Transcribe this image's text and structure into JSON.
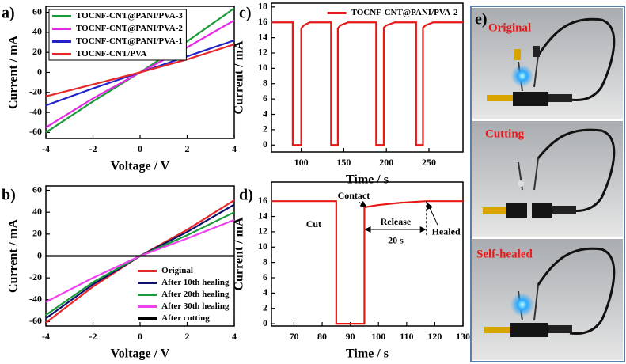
{
  "chart_data": [
    {
      "type": "line",
      "panel_label": "a)",
      "xlabel": "Voltage / V",
      "ylabel": "Current / mA",
      "x": [
        -4,
        -2,
        0,
        2,
        4
      ],
      "xlim": [
        -4,
        4
      ],
      "xticks": [
        -4,
        -2,
        0,
        2,
        4
      ],
      "ylim": [
        -66,
        66
      ],
      "yticks": [
        -60,
        -40,
        -20,
        0,
        20,
        40,
        60
      ],
      "legend": "upper left",
      "legend_frame": true,
      "series": [
        {
          "name": "TOCNF-CNT@PANI/PVA-3",
          "color": "#1a9a3a",
          "values": [
            -60,
            -29,
            0,
            31,
            64
          ]
        },
        {
          "name": "TOCNF-CNT@PANI/PVA-2",
          "color": "#e628e6",
          "values": [
            -55,
            -26,
            0,
            25,
            52
          ]
        },
        {
          "name": "TOCNF-CNT@PANI/PVA-1",
          "color": "#2222c8",
          "values": [
            -33,
            -16,
            0,
            16,
            32
          ]
        },
        {
          "name": "TOCNF-CNT/PVA",
          "color": "#e82828",
          "values": [
            -24,
            -12,
            0,
            13,
            28
          ]
        }
      ]
    },
    {
      "type": "line",
      "panel_label": "b)",
      "xlabel": "Voltage / V",
      "ylabel": "Current / mA",
      "x": [
        -4,
        -2,
        0,
        2,
        4
      ],
      "xlim": [
        -4,
        4
      ],
      "xticks": [
        -4,
        -2,
        0,
        2,
        4
      ],
      "ylim": [
        -64,
        64
      ],
      "yticks": [
        -60,
        -40,
        -20,
        0,
        20,
        40,
        60
      ],
      "legend": "lower right",
      "legend_frame": false,
      "series": [
        {
          "name": "Original",
          "color": "#e82828",
          "values": [
            -61,
            -28,
            0,
            24,
            51
          ]
        },
        {
          "name": "After 10th healing",
          "color": "#10106e",
          "values": [
            -57,
            -26,
            0,
            22,
            47
          ]
        },
        {
          "name": "After 20th healing",
          "color": "#1a9a3a",
          "values": [
            -54,
            -24,
            0,
            19,
            40
          ]
        },
        {
          "name": "After 30th healing",
          "color": "#f040f0",
          "values": [
            -42,
            -20,
            0,
            16,
            33
          ]
        },
        {
          "name": "After cutting",
          "color": "#000000",
          "values": [
            0,
            0,
            0,
            0,
            0
          ]
        }
      ]
    },
    {
      "type": "line",
      "panel_label": "c)",
      "xlabel": "Time / s",
      "ylabel": "Current / mA",
      "x": [
        65,
        90,
        90,
        100,
        100,
        103,
        110,
        135,
        135,
        143,
        143,
        146,
        155,
        188,
        188,
        197,
        197,
        200,
        210,
        235,
        235,
        243,
        243,
        246,
        255,
        290
      ],
      "xlim": [
        65,
        290
      ],
      "xticks": [
        100,
        150,
        200,
        250
      ],
      "ylim": [
        -0.9,
        18.5
      ],
      "yticks": [
        0,
        2,
        4,
        6,
        8,
        10,
        12,
        14,
        16,
        18
      ],
      "legend": "upper right",
      "legend_frame": false,
      "series": [
        {
          "name": "TOCNF-CNT@PANI/PVA-2",
          "color": "#e81818",
          "values": [
            16,
            16,
            0,
            0,
            15.2,
            15.6,
            16,
            16,
            0,
            0,
            15.2,
            15.6,
            16,
            16,
            0,
            0,
            15.3,
            15.6,
            16,
            16,
            0,
            0,
            15.3,
            15.6,
            16,
            16
          ]
        }
      ]
    },
    {
      "type": "line",
      "panel_label": "d)",
      "xlabel": "Time / s",
      "ylabel": "Current / mA",
      "x": [
        62,
        85,
        85,
        95,
        95,
        100,
        108,
        117,
        130
      ],
      "xlim": [
        62,
        130
      ],
      "xticks": [
        70,
        80,
        90,
        100,
        110,
        120,
        130
      ],
      "ylim": [
        -0.3,
        18.5
      ],
      "yticks": [
        0,
        2,
        4,
        6,
        8,
        10,
        12,
        14,
        16
      ],
      "annotations": [
        "Cut",
        "Contact",
        "Release",
        "20 s",
        "Healed"
      ],
      "series": [
        {
          "color": "#e81818",
          "values": [
            16,
            16,
            0,
            0,
            15.2,
            15.5,
            15.8,
            16,
            16
          ]
        }
      ]
    }
  ],
  "photo_panel": {
    "panel_label": "e)",
    "captions": [
      "Original",
      "Cutting",
      "Self-healed"
    ]
  }
}
